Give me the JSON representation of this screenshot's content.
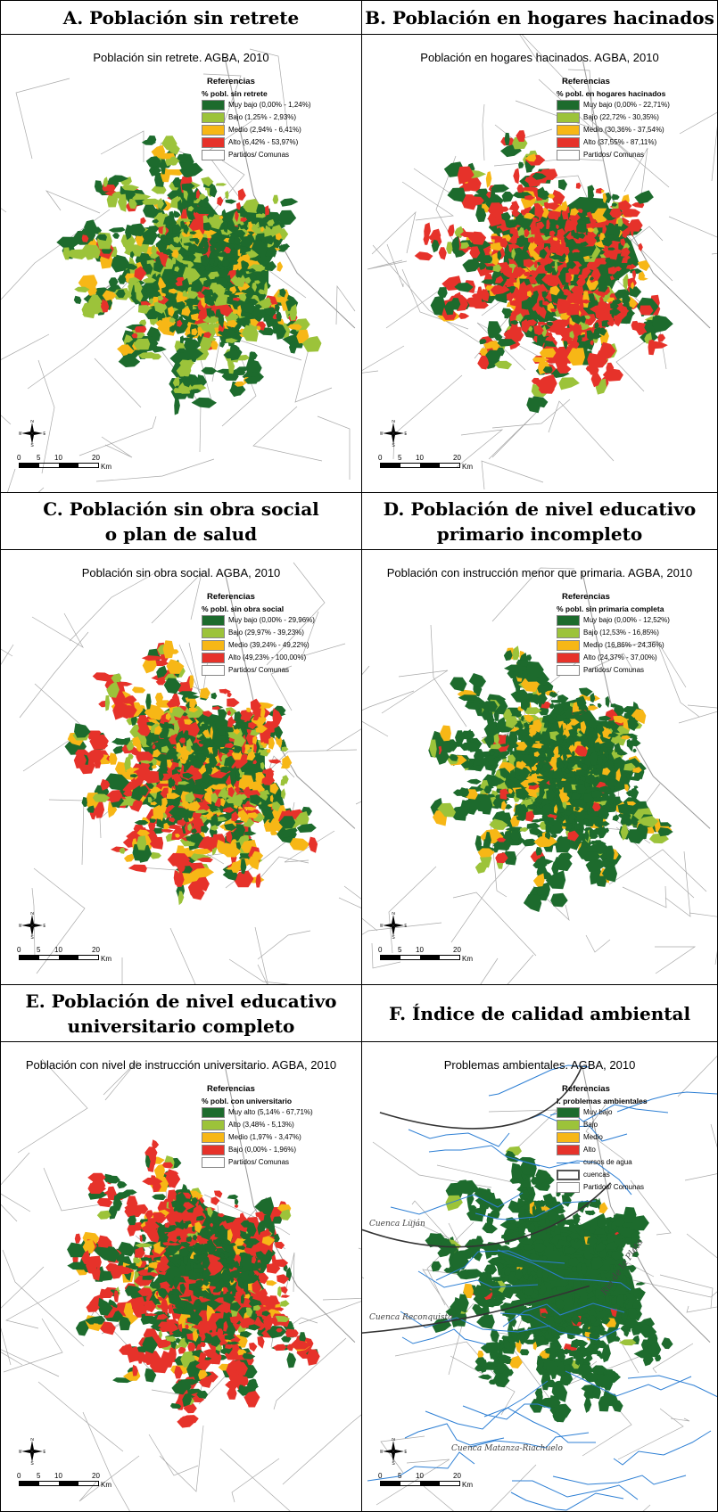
{
  "colors": {
    "muy_bajo": "#1d6b2d",
    "bajo": "#9cc33a",
    "medio": "#f7b716",
    "alto": "#e6322a",
    "water": "#2d7fd4",
    "boundary": "#a9a9a9"
  },
  "compass": {
    "n": "N",
    "s": "S",
    "e": "E",
    "w": "W"
  },
  "scale": {
    "t0": "0",
    "t5": "5",
    "t10": "10",
    "t20": "20",
    "unit": "Km"
  },
  "panels": [
    {
      "heading": "A. Población sin retrete",
      "title": "Población sin retrete. AGBA, 2010",
      "legend_title": "Referencias",
      "legend_subtitle": "% pobl. sin retrete",
      "items": [
        "Muy bajo (0,00% - 1,24%)",
        "Bajo (1,25% - 2,93%)",
        "Medio (2,94% - 6,41%)",
        "Alto (6,42% - 53,97%)",
        "Partidos/ Comunas"
      ]
    },
    {
      "heading": "B. Población en hogares hacinados",
      "title": "Población en hogares hacinados. AGBA, 2010",
      "legend_title": "Referencias",
      "legend_subtitle": "% pobl. en hogares hacinados",
      "items": [
        "Muy bajo (0,00% - 22,71%)",
        "Bajo (22,72% - 30,35%)",
        "Medio (30,36% - 37,54%)",
        "Alto (37,55% - 87,11%)",
        "Partidos/ Comunas"
      ]
    },
    {
      "heading": "C. Población sin obra social\no plan de salud",
      "title": "Población sin obra social. AGBA, 2010",
      "legend_title": "Referencias",
      "legend_subtitle": "% pobl. sin obra social",
      "items": [
        "Muy bajo (0,00% - 29,96%)",
        "Bajo (29,97% - 39,23%)",
        "Medio (39,24% - 49,22%)",
        "Alto (49,23% - 100,00%)",
        "Partidos/ Comunas"
      ]
    },
    {
      "heading": "D. Población de nivel educativo\nprimario incompleto",
      "title": "Población con instrucción menor que primaria. AGBA, 2010",
      "legend_title": "Referencias",
      "legend_subtitle": "% pobl. sin primaria completa",
      "items": [
        "Muy bajo (0,00% - 12,52%)",
        "Bajo (12,53% - 16,85%)",
        "Medio (16,86% - 24,36%)",
        "Alto (24,37% - 37,00%)",
        "Partidos/ Comunas"
      ]
    },
    {
      "heading": "E. Población de nivel educativo\nuniversitario completo",
      "title": "Población con nivel de instrucción universitario. AGBA, 2010",
      "legend_title": "Referencias",
      "legend_subtitle": "% pobl. con universitario",
      "items": [
        "Muy alto (5,14% - 67,71%)",
        "Alto (3,48% - 5,13%)",
        "Medio (1,97% - 3,47%)",
        "Bajo (0,00% - 1,96%)",
        "Partidos/ Comunas"
      ]
    },
    {
      "heading": "F. Índice de calidad ambiental",
      "title": "Problemas ambientales. AGBA, 2010",
      "legend_title": "Referencias",
      "legend_subtitle": "I. problemas ambientales",
      "items": [
        "Muy bajo",
        "Bajo",
        "Medio",
        "Alto",
        "cursos de agua",
        "cuencas",
        "Partidos/ Comunas"
      ],
      "basins": [
        "Cuenca Luján",
        "Cuenca Reconquista",
        "Cuenca Matanza-Riachuelo",
        "Río de la Plata"
      ]
    }
  ]
}
